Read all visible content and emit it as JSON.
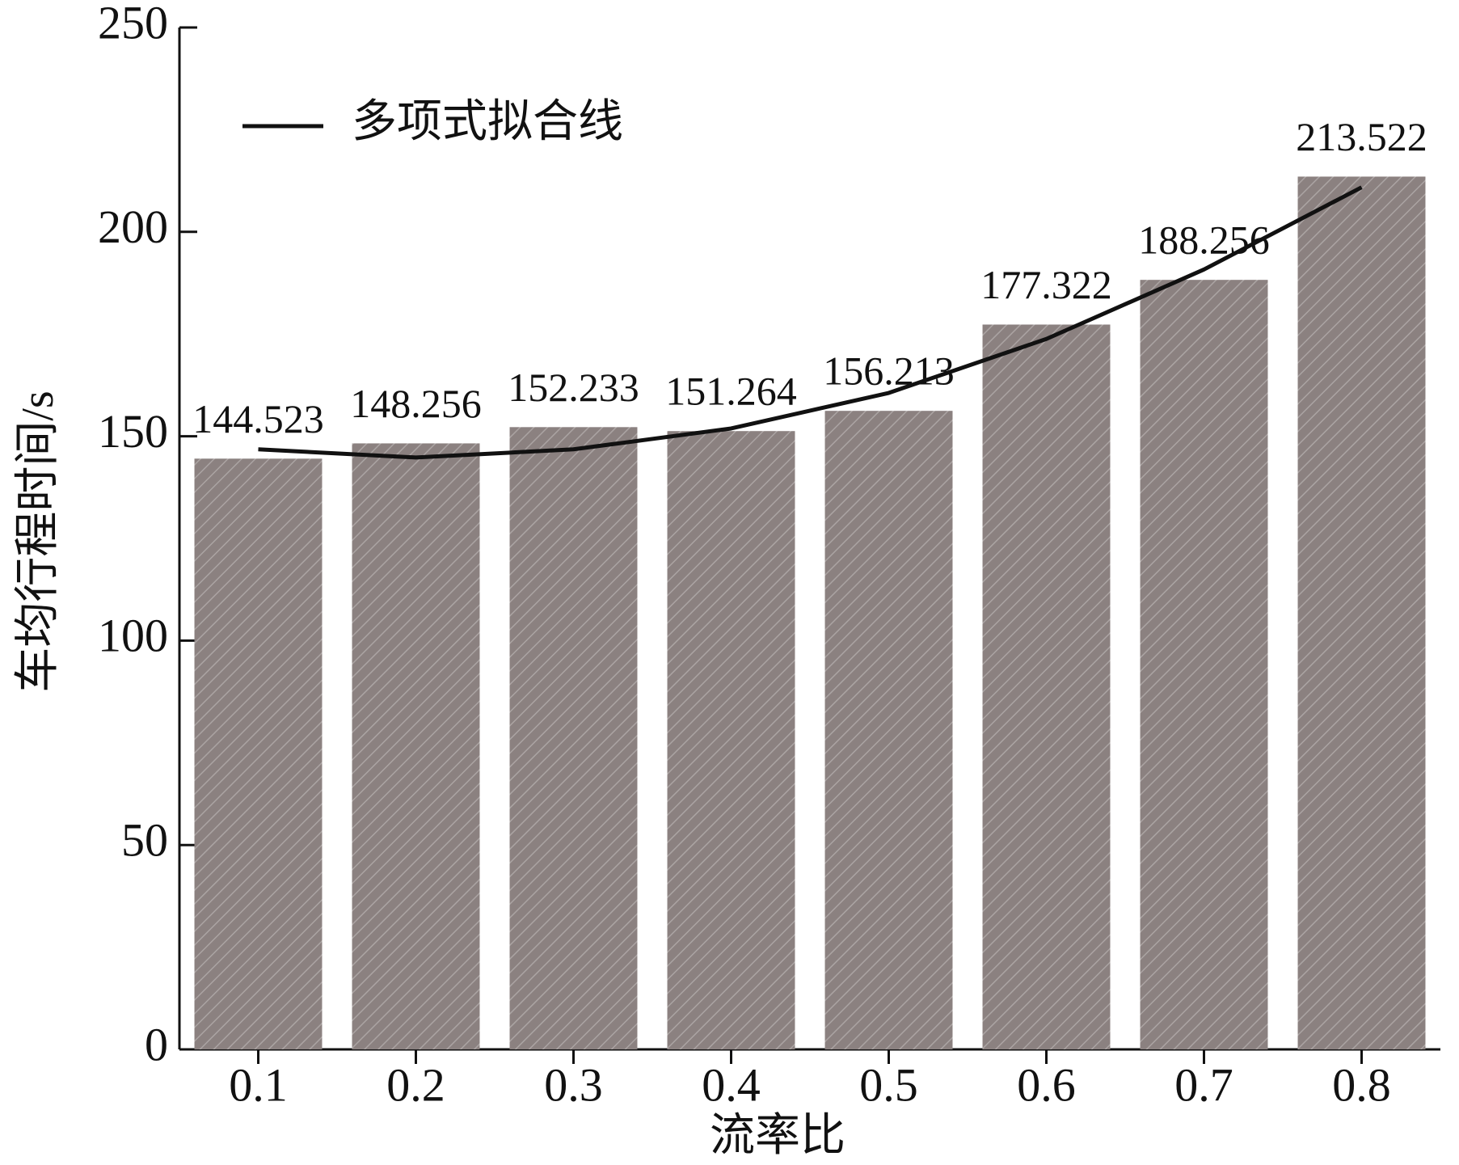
{
  "chart_data": {
    "type": "bar",
    "x_label": "流率比",
    "y_label": "车均行程时间/s",
    "categories": [
      "0.1",
      "0.2",
      "0.3",
      "0.4",
      "0.5",
      "0.6",
      "0.7",
      "0.8"
    ],
    "values": [
      144.523,
      148.256,
      152.233,
      151.264,
      156.213,
      177.322,
      188.256,
      213.522
    ],
    "color": "#8b8180",
    "fit_line": {
      "name": "多项式拟合线",
      "color": "#111111",
      "values": [
        146.8,
        144.8,
        146.8,
        151.9,
        160.6,
        173.8,
        190.8,
        210.9
      ]
    },
    "ylim": [
      0,
      250
    ],
    "yticks": [
      0,
      50,
      100,
      150,
      200,
      250
    ],
    "legend": "upper left"
  }
}
